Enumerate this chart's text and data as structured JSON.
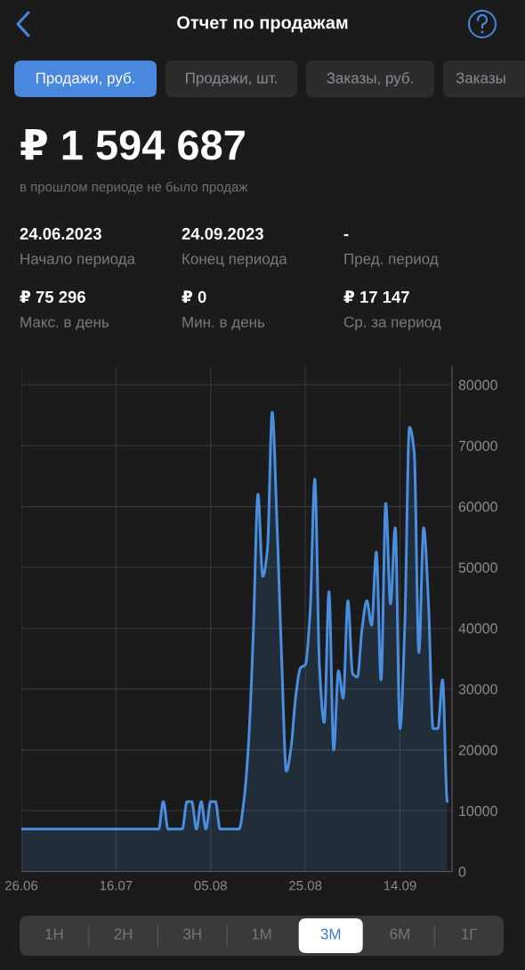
{
  "chart_data": {
    "type": "area",
    "title": "Отчет по продажам",
    "x": [
      "2023-06-26",
      "2023-06-27",
      "2023-06-28",
      "2023-06-29",
      "2023-06-30",
      "2023-07-01",
      "2023-07-02",
      "2023-07-03",
      "2023-07-04",
      "2023-07-05",
      "2023-07-06",
      "2023-07-07",
      "2023-07-08",
      "2023-07-09",
      "2023-07-10",
      "2023-07-11",
      "2023-07-12",
      "2023-07-13",
      "2023-07-14",
      "2023-07-15",
      "2023-07-16",
      "2023-07-17",
      "2023-07-18",
      "2023-07-19",
      "2023-07-20",
      "2023-07-21",
      "2023-07-22",
      "2023-07-23",
      "2023-07-24",
      "2023-07-25",
      "2023-07-26",
      "2023-07-27",
      "2023-07-28",
      "2023-07-29",
      "2023-07-30",
      "2023-07-31",
      "2023-08-01",
      "2023-08-02",
      "2023-08-03",
      "2023-08-04",
      "2023-08-05",
      "2023-08-06",
      "2023-08-07",
      "2023-08-08",
      "2023-08-09",
      "2023-08-10",
      "2023-08-11",
      "2023-08-12",
      "2023-08-13",
      "2023-08-14",
      "2023-08-15",
      "2023-08-16",
      "2023-08-17",
      "2023-08-18",
      "2023-08-19",
      "2023-08-20",
      "2023-08-21",
      "2023-08-22",
      "2023-08-23",
      "2023-08-24",
      "2023-08-25",
      "2023-08-26",
      "2023-08-27",
      "2023-08-28",
      "2023-08-29",
      "2023-08-30",
      "2023-08-31",
      "2023-09-01",
      "2023-09-02",
      "2023-09-03",
      "2023-09-04",
      "2023-09-05",
      "2023-09-06",
      "2023-09-07",
      "2023-09-08",
      "2023-09-09",
      "2023-09-10",
      "2023-09-11",
      "2023-09-12",
      "2023-09-13",
      "2023-09-14",
      "2023-09-15",
      "2023-09-16",
      "2023-09-17",
      "2023-09-18",
      "2023-09-19",
      "2023-09-20",
      "2023-09-21",
      "2023-09-22",
      "2023-09-23",
      "2023-09-24"
    ],
    "values": [
      7000,
      7000,
      7000,
      7000,
      7000,
      7000,
      7000,
      7000,
      7000,
      7000,
      7000,
      7000,
      7000,
      7000,
      7000,
      7000,
      7000,
      7000,
      7000,
      7000,
      7000,
      7000,
      7000,
      7000,
      7000,
      7000,
      7000,
      7000,
      7000,
      7000,
      11500,
      7000,
      7000,
      7000,
      7000,
      11500,
      11500,
      7000,
      11500,
      7000,
      11500,
      11500,
      7000,
      7000,
      7000,
      7000,
      7000,
      11500,
      21000,
      39000,
      62000,
      48500,
      53000,
      75500,
      57500,
      35000,
      16500,
      20500,
      29000,
      33500,
      34000,
      42500,
      64500,
      33500,
      24500,
      46000,
      20000,
      33000,
      28500,
      44500,
      32500,
      32000,
      40000,
      44500,
      40500,
      52500,
      31500,
      60500,
      44000,
      56500,
      23500,
      40000,
      73000,
      69000,
      36000,
      56500,
      44500,
      23500,
      23500,
      31500,
      11500
    ],
    "color": "#4a8ee0",
    "xlim": [
      "2023-06-26",
      "2023-09-25"
    ],
    "xticks": [
      {
        "value": "2023-06-26",
        "label": "26.06"
      },
      {
        "value": "2023-07-16",
        "label": "16.07"
      },
      {
        "value": "2023-08-05",
        "label": "05.08"
      },
      {
        "value": "2023-08-25",
        "label": "25.08"
      },
      {
        "value": "2023-09-14",
        "label": "14.09"
      }
    ],
    "ylim": [
      0,
      83000
    ],
    "yticks": [
      0,
      10000,
      20000,
      30000,
      40000,
      50000,
      60000,
      70000,
      80000
    ],
    "grid": true,
    "annotations": [
      "Продажи, руб.",
      "Продажи, шт.",
      "Заказы, руб.",
      "Заказы",
      "₽ 1 594 687",
      "в прошлом периоде не было продаж",
      "24.06.2023",
      "24.09.2023",
      "-",
      "Начало периода",
      "Конец периода",
      "Пред. период",
      "₽ 75 296",
      "₽ 0",
      "₽ 17 147",
      "Макс. в день",
      "Мин. в день",
      "Ср. за период",
      "1Н",
      "2Н",
      "3Н",
      "1М",
      "3М",
      "6М",
      "1Г"
    ]
  }
}
